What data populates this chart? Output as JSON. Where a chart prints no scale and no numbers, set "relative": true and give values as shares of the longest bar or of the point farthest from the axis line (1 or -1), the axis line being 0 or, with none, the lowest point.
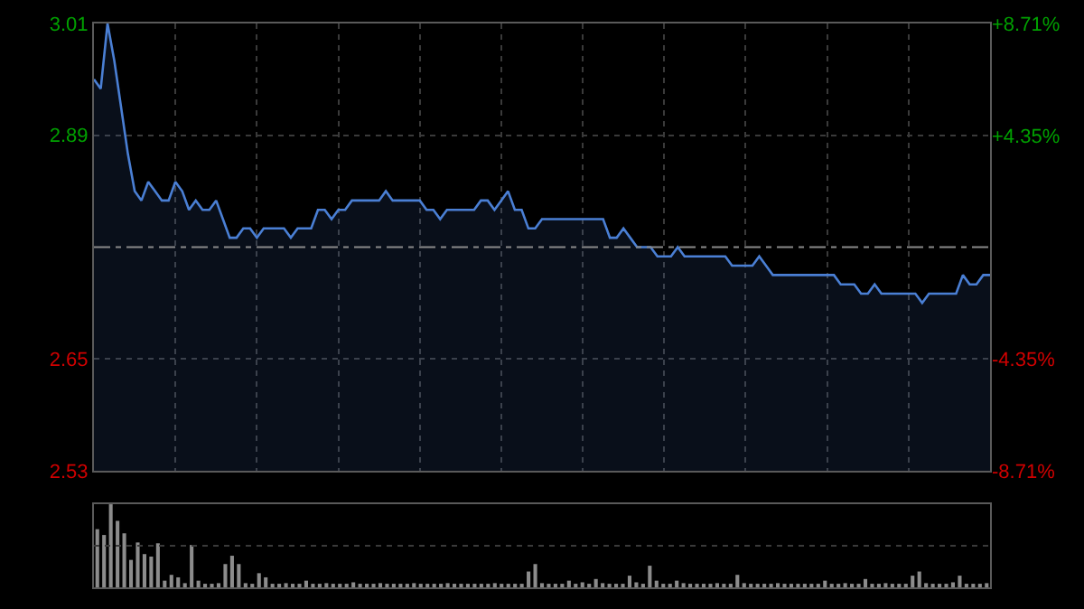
{
  "chart_data": [
    {
      "type": "area",
      "categories": [
        null,
        null,
        null,
        null,
        null,
        null,
        null,
        null,
        null,
        null,
        null,
        null,
        null,
        null,
        null,
        null,
        null,
        null,
        null,
        null,
        null,
        null,
        null,
        null,
        null,
        null,
        null,
        null,
        null,
        null,
        null,
        null,
        null,
        null,
        null,
        null,
        null,
        null,
        null,
        null,
        null,
        null,
        null,
        null,
        null,
        null,
        null,
        null,
        null,
        null,
        null,
        null,
        null,
        null,
        null,
        null,
        null,
        null,
        null,
        null,
        null,
        null,
        null,
        null,
        null,
        null,
        null,
        null,
        null,
        null,
        null,
        null,
        null,
        null,
        null,
        null,
        null,
        null,
        null,
        null,
        null,
        null,
        null,
        null,
        null,
        null,
        null,
        null,
        null,
        null,
        null,
        null,
        null,
        null,
        null,
        null,
        null,
        null,
        null,
        null,
        null,
        null,
        null,
        null,
        null,
        null,
        null,
        null,
        null,
        null,
        null,
        null,
        null,
        null,
        null,
        null,
        null,
        null,
        null,
        null,
        null,
        null,
        null,
        null,
        null,
        null,
        null,
        null,
        null,
        null,
        null,
        null,
        null
      ],
      "series": [
        {
          "color": "#4a7fd4",
          "values": [
            2.95,
            2.94,
            3.01,
            2.97,
            2.92,
            2.87,
            2.83,
            2.82,
            2.84,
            2.83,
            2.82,
            2.82,
            2.84,
            2.83,
            2.81,
            2.82,
            2.81,
            2.81,
            2.82,
            2.8,
            2.78,
            2.78,
            2.79,
            2.79,
            2.78,
            2.79,
            2.79,
            2.79,
            2.79,
            2.78,
            2.79,
            2.79,
            2.79,
            2.81,
            2.81,
            2.8,
            2.81,
            2.81,
            2.82,
            2.82,
            2.82,
            2.82,
            2.82,
            2.83,
            2.82,
            2.82,
            2.82,
            2.82,
            2.82,
            2.81,
            2.81,
            2.8,
            2.81,
            2.81,
            2.81,
            2.81,
            2.81,
            2.82,
            2.82,
            2.81,
            2.82,
            2.83,
            2.81,
            2.81,
            2.79,
            2.79,
            2.8,
            2.8,
            2.8,
            2.8,
            2.8,
            2.8,
            2.8,
            2.8,
            2.8,
            2.8,
            2.78,
            2.78,
            2.79,
            2.78,
            2.77,
            2.77,
            2.77,
            2.76,
            2.76,
            2.76,
            2.77,
            2.76,
            2.76,
            2.76,
            2.76,
            2.76,
            2.76,
            2.76,
            2.75,
            2.75,
            2.75,
            2.75,
            2.76,
            2.75,
            2.74,
            2.74,
            2.74,
            2.74,
            2.74,
            2.74,
            2.74,
            2.74,
            2.74,
            2.74,
            2.73,
            2.73,
            2.73,
            2.72,
            2.72,
            2.73,
            2.72,
            2.72,
            2.72,
            2.72,
            2.72,
            2.72,
            2.71,
            2.72,
            2.72,
            2.72,
            2.72,
            2.72,
            2.74,
            2.73,
            2.73,
            2.74,
            2.74
          ]
        }
      ],
      "ylim": [
        2.53,
        3.01
      ],
      "yticks": [
        3.01,
        2.89,
        2.65,
        2.53
      ],
      "y2lim": [
        -8.71,
        8.71
      ],
      "y2ticks": [
        {
          "value": 8.71,
          "label": "+8.71%"
        },
        {
          "value": 4.35,
          "label": "+4.35%"
        },
        {
          "value": -4.35,
          "label": "-4.35%"
        },
        {
          "value": -8.71,
          "label": "-8.71%"
        }
      ],
      "ref_lines": [
        {
          "axis": "y",
          "value": 2.77,
          "label": null,
          "color": "#8a8a8a",
          "line_style": "dashed"
        }
      ],
      "grid": true,
      "legend": false,
      "marker": "none",
      "line_style": "solid"
    },
    {
      "type": "bar",
      "relative": true,
      "legend": false,
      "ref_lines": [
        {
          "axis": "y",
          "value": 0.5,
          "color": "#3a3a3a",
          "line_style": "dotted"
        }
      ],
      "categories": [
        null,
        null,
        null,
        null,
        null,
        null,
        null,
        null,
        null,
        null,
        null,
        null,
        null,
        null,
        null,
        null,
        null,
        null,
        null,
        null,
        null,
        null,
        null,
        null,
        null,
        null,
        null,
        null,
        null,
        null,
        null,
        null,
        null,
        null,
        null,
        null,
        null,
        null,
        null,
        null,
        null,
        null,
        null,
        null,
        null,
        null,
        null,
        null,
        null,
        null,
        null,
        null,
        null,
        null,
        null,
        null,
        null,
        null,
        null,
        null,
        null,
        null,
        null,
        null,
        null,
        null,
        null,
        null,
        null,
        null,
        null,
        null,
        null,
        null,
        null,
        null,
        null,
        null,
        null,
        null,
        null,
        null,
        null,
        null,
        null,
        null,
        null,
        null,
        null,
        null,
        null,
        null,
        null,
        null,
        null,
        null,
        null,
        null,
        null,
        null,
        null,
        null,
        null,
        null,
        null,
        null,
        null,
        null,
        null,
        null,
        null,
        null,
        null,
        null,
        null,
        null,
        null,
        null,
        null,
        null,
        null,
        null,
        null,
        null,
        null,
        null,
        null,
        null,
        null,
        null,
        null,
        null,
        null
      ],
      "series": [
        {
          "color": "#8c8c8c",
          "values": [
            0.7,
            0.63,
            1.0,
            0.8,
            0.65,
            0.33,
            0.54,
            0.4,
            0.37,
            0.53,
            0.08,
            0.15,
            0.12,
            0.05,
            0.51,
            0.08,
            0.04,
            0.04,
            0.05,
            0.28,
            0.38,
            0.28,
            0.05,
            0.04,
            0.17,
            0.12,
            0.04,
            0.03,
            0.05,
            0.03,
            0.04,
            0.08,
            0.03,
            0.03,
            0.05,
            0.03,
            0.04,
            0.03,
            0.06,
            0.03,
            0.04,
            0.03,
            0.05,
            0.03,
            0.03,
            0.04,
            0.03,
            0.05,
            0.03,
            0.04,
            0.03,
            0.03,
            0.05,
            0.03,
            0.04,
            0.03,
            0.03,
            0.04,
            0.03,
            0.05,
            0.03,
            0.04,
            0.03,
            0.03,
            0.19,
            0.28,
            0.05,
            0.03,
            0.04,
            0.03,
            0.08,
            0.04,
            0.06,
            0.03,
            0.1,
            0.05,
            0.03,
            0.04,
            0.03,
            0.14,
            0.06,
            0.04,
            0.26,
            0.08,
            0.04,
            0.03,
            0.08,
            0.05,
            0.03,
            0.04,
            0.03,
            0.03,
            0.05,
            0.03,
            0.04,
            0.15,
            0.05,
            0.03,
            0.04,
            0.03,
            0.03,
            0.05,
            0.03,
            0.04,
            0.03,
            0.03,
            0.04,
            0.03,
            0.08,
            0.03,
            0.04,
            0.05,
            0.03,
            0.04,
            0.1,
            0.03,
            0.04,
            0.05,
            0.03,
            0.04,
            0.03,
            0.14,
            0.19,
            0.05,
            0.03,
            0.04,
            0.03,
            0.06,
            0.14,
            0.03,
            0.04,
            0.03,
            0.05
          ]
        }
      ]
    }
  ]
}
